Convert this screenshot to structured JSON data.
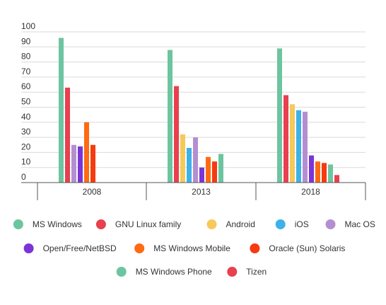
{
  "chart_data": {
    "type": "bar",
    "title": "",
    "xlabel": "",
    "ylabel": "",
    "ylim": [
      0,
      100
    ],
    "yticks": [
      0,
      10,
      20,
      30,
      40,
      50,
      60,
      70,
      80,
      90,
      100
    ],
    "grid": true,
    "legend_position": "bottom",
    "categories": [
      "2008",
      "2013",
      "2018"
    ],
    "series": [
      {
        "name": "MS Windows",
        "color": "#6cc5a0",
        "values": [
          96,
          88,
          89
        ]
      },
      {
        "name": "GNU Linux family",
        "color": "#e8404f",
        "values": [
          63,
          64,
          58
        ]
      },
      {
        "name": "Android",
        "color": "#f5c95a",
        "values": [
          null,
          32,
          52
        ]
      },
      {
        "name": "iOS",
        "color": "#3eb1e8",
        "values": [
          null,
          23,
          48
        ]
      },
      {
        "name": "Mac OS",
        "color": "#b48fd0",
        "values": [
          25,
          30,
          47
        ]
      },
      {
        "name": "Open/Free/NetBSD",
        "color": "#7b35d6",
        "values": [
          24,
          10,
          18
        ]
      },
      {
        "name": "MS Windows Mobile",
        "color": "#ff6a13",
        "values": [
          40,
          17,
          14
        ]
      },
      {
        "name": "Oracle (Sun) Solaris",
        "color": "#f53b0f",
        "values": [
          25,
          14,
          13
        ]
      },
      {
        "name": "MS Windows Phone",
        "color": "#6cc5a0",
        "values": [
          null,
          19,
          12
        ]
      },
      {
        "name": "Tizen",
        "color": "#e8404f",
        "values": [
          null,
          null,
          5
        ]
      }
    ]
  }
}
